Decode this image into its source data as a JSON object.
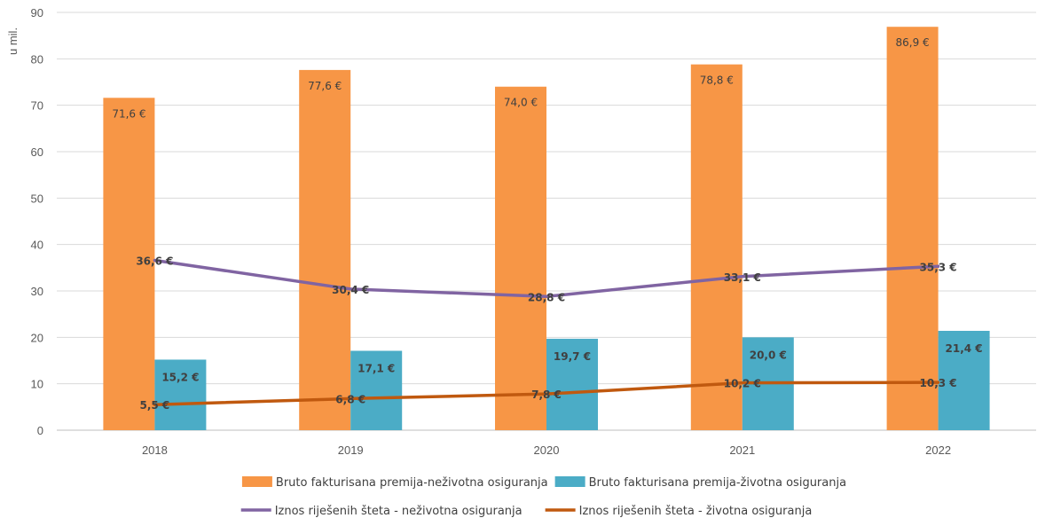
{
  "chart_data": {
    "type": "bar",
    "categories": [
      "2018",
      "2019",
      "2020",
      "2021",
      "2022"
    ],
    "ylabel": "u mil.",
    "ylim": [
      0,
      90
    ],
    "yticks": [
      0,
      10,
      20,
      30,
      40,
      50,
      60,
      70,
      80,
      90
    ],
    "grid": true,
    "legend_position": "bottom",
    "series": [
      {
        "name": "Bruto fakturisana premija-neživotna osiguranja",
        "type": "bar",
        "color": "#F79646",
        "values": [
          71.6,
          77.6,
          74.0,
          78.8,
          86.9
        ],
        "labels": [
          "71,6 €",
          "77,6 €",
          "74,0 €",
          "78,8 €",
          "86,9 €"
        ]
      },
      {
        "name": "Bruto fakturisana premija-životna osiguranja",
        "type": "bar",
        "color": "#4BACC6",
        "values": [
          15.2,
          17.1,
          19.7,
          20.0,
          21.4
        ],
        "labels": [
          "15,2 €",
          "17,1 €",
          "19,7 €",
          "20,0 €",
          "21,4 €"
        ]
      },
      {
        "name": "Iznos riješenih šteta - neživotna osiguranja",
        "type": "line",
        "color": "#8064A2",
        "values": [
          36.6,
          30.4,
          28.8,
          33.1,
          35.3
        ],
        "labels": [
          "36,6 €",
          "30,4 €",
          "28,8 €",
          "33,1 €",
          "35,3 €"
        ]
      },
      {
        "name": "Iznos riješenih šteta - životna osiguranja",
        "type": "line",
        "color": "#C0590F",
        "values": [
          5.5,
          6.8,
          7.8,
          10.2,
          10.3
        ],
        "labels": [
          "5,5 €",
          "6,8 €",
          "7,8 €",
          "10,2 €",
          "10,3 €"
        ]
      }
    ]
  }
}
